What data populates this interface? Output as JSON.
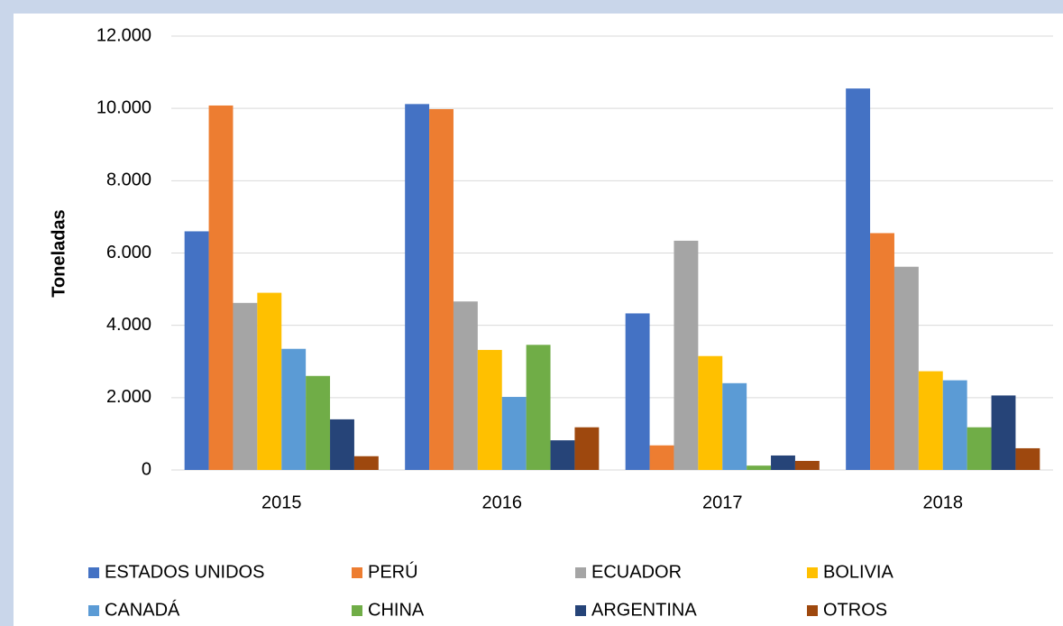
{
  "chart_data": {
    "type": "bar",
    "y_label": "Toneladas",
    "categories": [
      "2015",
      "2016",
      "2017",
      "2018"
    ],
    "series": [
      {
        "name": "ESTADOS UNIDOS",
        "color": "#4472c4",
        "values": [
          6600,
          10120,
          4330,
          10550
        ]
      },
      {
        "name": "PERÚ",
        "color": "#ed7d31",
        "values": [
          10080,
          9980,
          680,
          6550
        ]
      },
      {
        "name": "ECUADOR",
        "color": "#a5a5a5",
        "values": [
          4620,
          4660,
          6340,
          5620
        ]
      },
      {
        "name": "BOLIVIA",
        "color": "#ffc000",
        "values": [
          4900,
          3320,
          3150,
          2730
        ]
      },
      {
        "name": "CANADÁ",
        "color": "#5b9bd5",
        "values": [
          3350,
          2020,
          2400,
          2480
        ]
      },
      {
        "name": "CHINA",
        "color": "#70ad47",
        "values": [
          2600,
          3460,
          120,
          1180
        ]
      },
      {
        "name": "ARGENTINA",
        "color": "#264478",
        "values": [
          1400,
          820,
          400,
          2060
        ]
      },
      {
        "name": "OTROS",
        "color": "#9e480e",
        "values": [
          380,
          1180,
          250,
          600
        ]
      }
    ],
    "ylim": [
      0,
      12000
    ],
    "yticks": [
      0,
      {
        "value": 2000,
        "label": "2.000"
      },
      {
        "value": 4000,
        "label": "4.000"
      },
      {
        "value": 6000,
        "label": "6.000"
      },
      {
        "value": 8000,
        "label": "8.000"
      },
      {
        "value": 10000,
        "label": "10.000"
      },
      {
        "value": 12000,
        "label": "12.000"
      }
    ],
    "grid": true,
    "legend": "bottom"
  }
}
